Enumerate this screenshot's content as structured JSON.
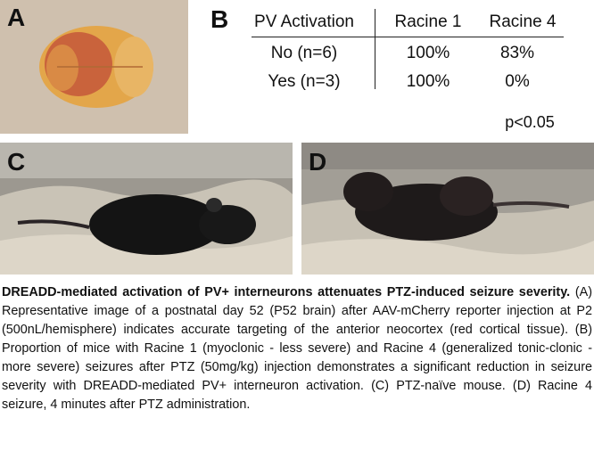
{
  "panels": {
    "a": {
      "label": "A"
    },
    "b": {
      "label": "B",
      "table": {
        "header": [
          "PV Activation",
          "Racine 1",
          "Racine 4"
        ],
        "rows": [
          [
            "No (n=6)",
            "100%",
            "83%"
          ],
          [
            "Yes (n=3)",
            "100%",
            "0%"
          ]
        ]
      },
      "note": "p<0.05"
    },
    "c": {
      "label": "C"
    },
    "d": {
      "label": "D"
    }
  },
  "caption": {
    "title": "DREADD-mediated activation of PV+ interneurons attenuates PTZ-induced seizure severity.",
    "body": "(A) Representative image of a postnatal day 52 (P52 brain) after AAV-mCherry reporter injection at P2 (500nL/hemisphere) indicates accurate targeting of the anterior neocortex (red cortical tissue). (B) Proportion of mice with Racine 1 (myoclonic - less severe) and Racine 4 (generalized tonic-clonic - more severe) seizures after PTZ (50mg/kg) injection demonstrates a significant reduction in seizure severity with DREADD-mediated PV+ interneuron activation. (C) PTZ-naïve mouse. (D) Racine 4 seizure, 4 minutes after PTZ administration."
  }
}
